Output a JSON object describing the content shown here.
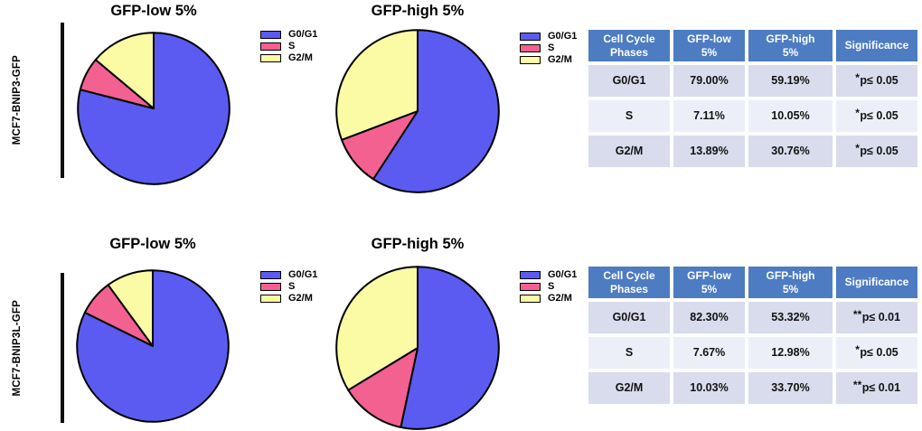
{
  "page": {
    "background": "#ffffff",
    "kind": "cell-cycle-pie-chart-figure"
  },
  "colors": {
    "slice_g0g1": "#5b5bf2",
    "slice_s": "#f2618f",
    "slice_g2m": "#fbfba6",
    "slice_border": "#000000",
    "table_header_bg": "#4d7cc3",
    "table_header_text": "#ffffff",
    "table_row_bg_dark": "#d8dcec",
    "table_row_bg_light": "#edeff8",
    "bracket_line": "#0e0e0e"
  },
  "groups": [
    {
      "label": "MCF7-BNIP3-GFP"
    },
    {
      "label": "MCF7-BNIP3L-GFP"
    }
  ],
  "phases": [
    "G0/G1",
    "S",
    "G2/M"
  ],
  "chart_data": [
    {
      "type": "pie",
      "group": "MCF7-BNIP3-GFP",
      "title": "GFP-low 5%",
      "labels": [
        "G0/G1",
        "S",
        "G2/M"
      ],
      "values": [
        79.0,
        7.11,
        13.89
      ],
      "unit": "%",
      "colors": [
        "#5b5bf2",
        "#f2618f",
        "#fbfba6"
      ],
      "start_angle": "12-oclock",
      "direction": "clockwise",
      "legend_position": "right"
    },
    {
      "type": "pie",
      "group": "MCF7-BNIP3-GFP",
      "title": "GFP-high 5%",
      "labels": [
        "G0/G1",
        "S",
        "G2/M"
      ],
      "values": [
        59.19,
        10.05,
        30.76
      ],
      "unit": "%",
      "colors": [
        "#5b5bf2",
        "#f2618f",
        "#fbfba6"
      ],
      "start_angle": "12-oclock",
      "direction": "clockwise",
      "legend_position": "right"
    },
    {
      "type": "pie",
      "group": "MCF7-BNIP3L-GFP",
      "title": "GFP-low 5%",
      "labels": [
        "G0/G1",
        "S",
        "G2/M"
      ],
      "values": [
        82.3,
        7.67,
        10.03
      ],
      "unit": "%",
      "colors": [
        "#5b5bf2",
        "#f2618f",
        "#fbfba6"
      ],
      "start_angle": "12-oclock",
      "direction": "clockwise",
      "legend_position": "right"
    },
    {
      "type": "pie",
      "group": "MCF7-BNIP3L-GFP",
      "title": "GFP-high 5%",
      "labels": [
        "G0/G1",
        "S",
        "G2/M"
      ],
      "values": [
        53.32,
        12.98,
        33.7
      ],
      "unit": "%",
      "colors": [
        "#5b5bf2",
        "#f2618f",
        "#fbfba6"
      ],
      "start_angle": "12-oclock",
      "direction": "clockwise",
      "legend_position": "right"
    }
  ],
  "tables": [
    {
      "group": "MCF7-BNIP3-GFP",
      "headers": [
        "Cell Cycle\nPhases",
        "GFP-low\n5%",
        "GFP-high\n5%",
        "Significance"
      ],
      "rows": [
        {
          "phase": "G0/G1",
          "gfp_low": "79.00%",
          "gfp_high": "59.19%",
          "sig_stars": "*",
          "sig_text": "p≤ 0.05"
        },
        {
          "phase": "S",
          "gfp_low": "7.11%",
          "gfp_high": "10.05%",
          "sig_stars": "*",
          "sig_text": "p≤ 0.05"
        },
        {
          "phase": "G2/M",
          "gfp_low": "13.89%",
          "gfp_high": "30.76%",
          "sig_stars": "*",
          "sig_text": "p≤ 0.05"
        }
      ]
    },
    {
      "group": "MCF7-BNIP3L-GFP",
      "headers": [
        "Cell Cycle\nPhases",
        "GFP-low\n5%",
        "GFP-high\n5%",
        "Significance"
      ],
      "rows": [
        {
          "phase": "G0/G1",
          "gfp_low": "82.30%",
          "gfp_high": "53.32%",
          "sig_stars": "**",
          "sig_text": "p≤ 0.01"
        },
        {
          "phase": "S",
          "gfp_low": "7.67%",
          "gfp_high": "12.98%",
          "sig_stars": "*",
          "sig_text": "p≤ 0.05"
        },
        {
          "phase": "G2/M",
          "gfp_low": "10.03%",
          "gfp_high": "33.70%",
          "sig_stars": "**",
          "sig_text": "p≤ 0.01"
        }
      ]
    }
  ]
}
